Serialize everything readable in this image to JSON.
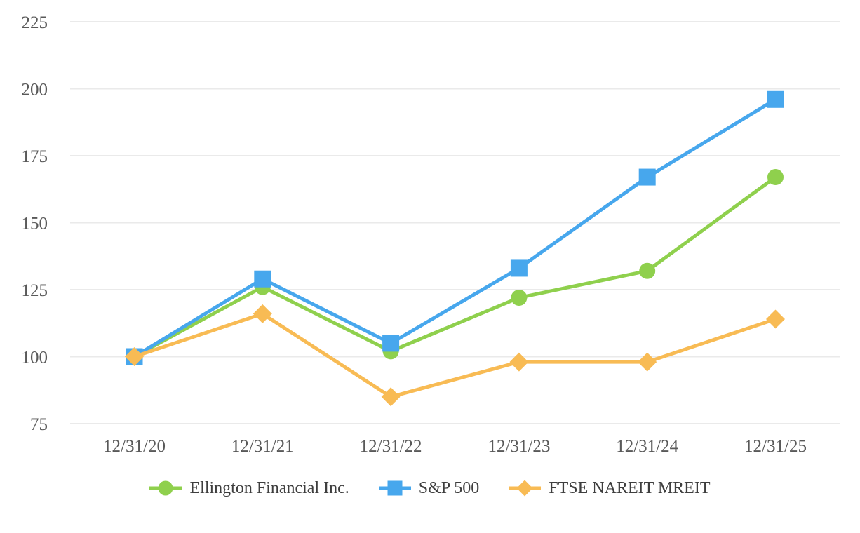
{
  "page": {
    "background": "#ffffff"
  },
  "chart_data": {
    "type": "line",
    "title": "",
    "xlabel": "",
    "ylabel": "",
    "x": [
      "12/31/20",
      "12/31/21",
      "12/31/22",
      "12/31/23",
      "12/31/24",
      "12/31/25"
    ],
    "series": [
      {
        "name": "Ellington Financial Inc.",
        "marker": "circle",
        "color": "#8FD04D",
        "values": [
          100,
          126,
          102,
          122,
          132,
          167
        ]
      },
      {
        "name": "S&P 500",
        "marker": "square",
        "color": "#47A7ED",
        "values": [
          100,
          129,
          105,
          133,
          167,
          196
        ]
      },
      {
        "name": "FTSE NAREIT MREIT",
        "marker": "diamond",
        "color": "#F8BB54",
        "values": [
          100,
          116,
          85,
          98,
          98,
          114
        ]
      }
    ],
    "yticks": [
      75,
      100,
      125,
      150,
      175,
      200,
      225
    ],
    "ylim": [
      75,
      225
    ],
    "grid": "horizontal",
    "gridline_color": "#EAEAEA",
    "tick_label_color": "#595959",
    "legend_label_color": "#3e3e3e",
    "legend_position": "bottom"
  }
}
